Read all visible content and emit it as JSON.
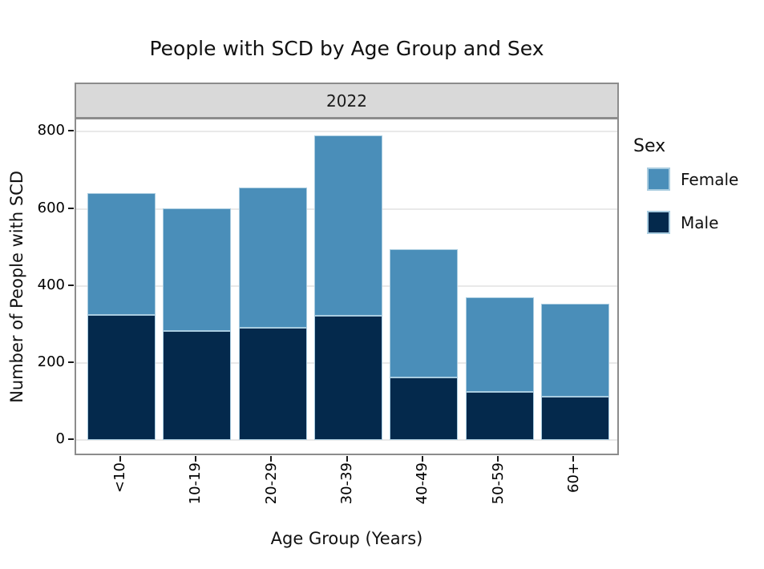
{
  "title": "People with SCD by Age Group and Sex",
  "facet_label": "2022",
  "legend": {
    "title": "Sex",
    "items": [
      {
        "label": "Female",
        "color": "#4a8eb9"
      },
      {
        "label": "Male",
        "color": "#04294c"
      }
    ]
  },
  "colors": {
    "female": "#4a8eb9",
    "male": "#04294c",
    "bar_outline": "#a9cce0",
    "strip_background": "#d9d9d9",
    "strip_border": "#8c8c8c",
    "panel_border": "#8c8c8c",
    "gridline": "#e9e9e9"
  },
  "chart_data": {
    "type": "bar",
    "stacked": true,
    "title": "People with SCD by Age Group and Sex",
    "facet": "2022",
    "xlabel": "Age Group (Years)",
    "ylabel": "Number of People with SCD",
    "categories": [
      "<10",
      "10-19",
      "20-29",
      "30-39",
      "40-49",
      "50-59",
      "60+"
    ],
    "series": [
      {
        "name": "Male",
        "color": "#04294c",
        "values": [
          324,
          283,
          292,
          323,
          163,
          125,
          113
        ]
      },
      {
        "name": "Female",
        "color": "#4a8eb9",
        "values": [
          316,
          319,
          363,
          467,
          332,
          245,
          240
        ]
      }
    ],
    "stack_order_bottom_to_top": [
      "Male",
      "Female"
    ],
    "totals": [
      640,
      602,
      655,
      790,
      495,
      370,
      353
    ],
    "yticks": [
      0,
      200,
      400,
      600,
      800
    ],
    "ylim": [
      0,
      832
    ],
    "grid": "horizontal-major",
    "legend_position": "right"
  }
}
